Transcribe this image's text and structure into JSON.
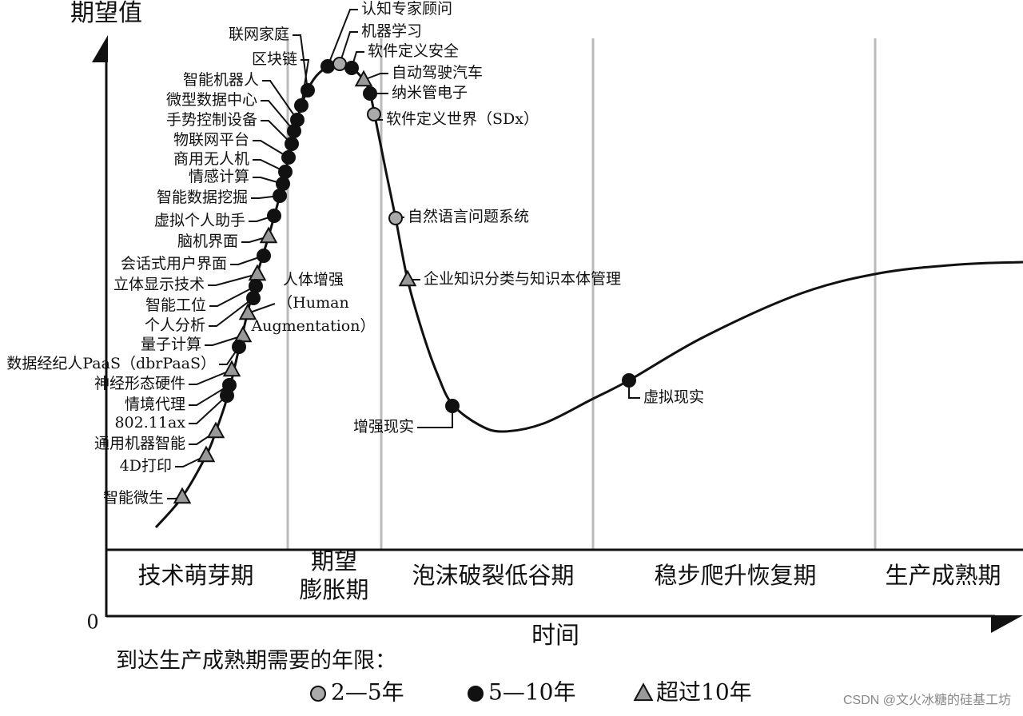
{
  "axes": {
    "y_label": "期望值",
    "x_label": "时间",
    "origin": "0"
  },
  "phases": [
    [
      "技术萌芽期"
    ],
    [
      "期望",
      "膨胀期"
    ],
    [
      "泡沫破裂低谷期"
    ],
    [
      "稳步爬升恢复期"
    ],
    [
      "生产成熟期"
    ]
  ],
  "technologies": [
    {
      "label": "联网家庭",
      "marker": "circle-black"
    },
    {
      "label": "区块链",
      "marker": "circle-black"
    },
    {
      "label": "智能机器人",
      "marker": "circle-black"
    },
    {
      "label": "微型数据中心",
      "marker": "circle-black"
    },
    {
      "label": "手势控制设备",
      "marker": "circle-black"
    },
    {
      "label": "物联网平台",
      "marker": "circle-black"
    },
    {
      "label": "商用无人机",
      "marker": "circle-black"
    },
    {
      "label": "情感计算",
      "marker": "circle-black"
    },
    {
      "label": "智能数据挖掘",
      "marker": "circle-black"
    },
    {
      "label": "虚拟个人助手",
      "marker": "circle-black"
    },
    {
      "label": "脑机界面",
      "marker": "triangle"
    },
    {
      "label": "会话式用户界面",
      "marker": "circle-black"
    },
    {
      "label": "立体显示技术",
      "marker": "triangle"
    },
    {
      "label": "智能工位",
      "marker": "circle-black"
    },
    {
      "label": "个人分析",
      "marker": "circle-black"
    },
    {
      "label": "量子计算",
      "marker": "triangle"
    },
    {
      "label": "数据经纪人PaaS（dbrPaaS）",
      "marker": "circle-black"
    },
    {
      "label": "神经形态硬件",
      "marker": "triangle"
    },
    {
      "label": "情境代理",
      "marker": "circle-black"
    },
    {
      "label": "802.11ax",
      "marker": "circle-black"
    },
    {
      "label": "通用机器智能",
      "marker": "triangle"
    },
    {
      "label": "4D打印",
      "marker": "triangle"
    },
    {
      "label": "智能微生",
      "marker": "triangle"
    },
    {
      "label": [
        "人体增强",
        "（Human",
        "Augmentation）"
      ],
      "marker": "triangle"
    },
    {
      "label": "认知专家顾问",
      "marker": "circle-black"
    },
    {
      "label": "机器学习",
      "marker": "circle-gray"
    },
    {
      "label": "软件定义安全",
      "marker": "circle-black"
    },
    {
      "label": "自动驾驶汽车",
      "marker": "triangle"
    },
    {
      "label": "纳米管电子",
      "marker": "circle-black"
    },
    {
      "label": "软件定义世界（SDx）",
      "marker": "circle-gray"
    },
    {
      "label": "自然语言问题系统",
      "marker": "circle-gray"
    },
    {
      "label": "企业知识分类与知识本体管理",
      "marker": "triangle"
    },
    {
      "label": "增强现实",
      "marker": "circle-black"
    },
    {
      "label": "虚拟现实",
      "marker": "circle-black"
    }
  ],
  "legend": {
    "title": "到达生产成熟期需要的年限：",
    "items": [
      {
        "label": "2—5年",
        "marker": "circle-gray"
      },
      {
        "label": "5—10年",
        "marker": "circle-black"
      },
      {
        "label": "超过10年",
        "marker": "triangle"
      }
    ]
  },
  "watermark": "CSDN @文火冰糖的硅基工坊"
}
